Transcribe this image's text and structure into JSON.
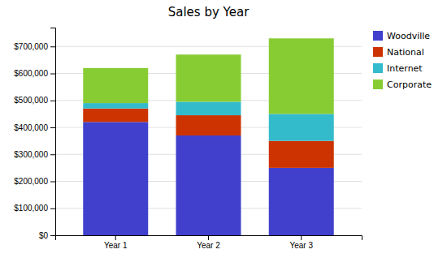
{
  "chart_data": {
    "type": "bar",
    "title": "Sales by Year",
    "stacked": true,
    "grid": true,
    "legend": "right",
    "categories": [
      "Year 1",
      "Year 2",
      "Year 3"
    ],
    "series": [
      {
        "name": "Woodville",
        "color": "#4040cc",
        "values": [
          420000,
          370000,
          250000
        ]
      },
      {
        "name": "National",
        "color": "#cc3300",
        "values": [
          50000,
          75000,
          100000
        ]
      },
      {
        "name": "Internet",
        "color": "#33bbcc",
        "values": [
          20000,
          50000,
          100000
        ]
      },
      {
        "name": "Corporate",
        "color": "#88cc33",
        "values": [
          130000,
          175000,
          280000
        ]
      }
    ],
    "ylim": [
      0,
      770000.11
    ],
    "yticks": [
      {
        "value": 0,
        "label": "$0"
      },
      {
        "value": 100000,
        "label": "$100,000"
      },
      {
        "value": 200000,
        "label": "$200,000"
      },
      {
        "value": 300000,
        "label": "$300,000"
      },
      {
        "value": 400000,
        "label": "$400,000"
      },
      {
        "value": 500000,
        "label": "$500,000"
      },
      {
        "value": 600000,
        "label": "$600,000"
      },
      {
        "value": 700000,
        "label": "$700,000"
      }
    ]
  }
}
